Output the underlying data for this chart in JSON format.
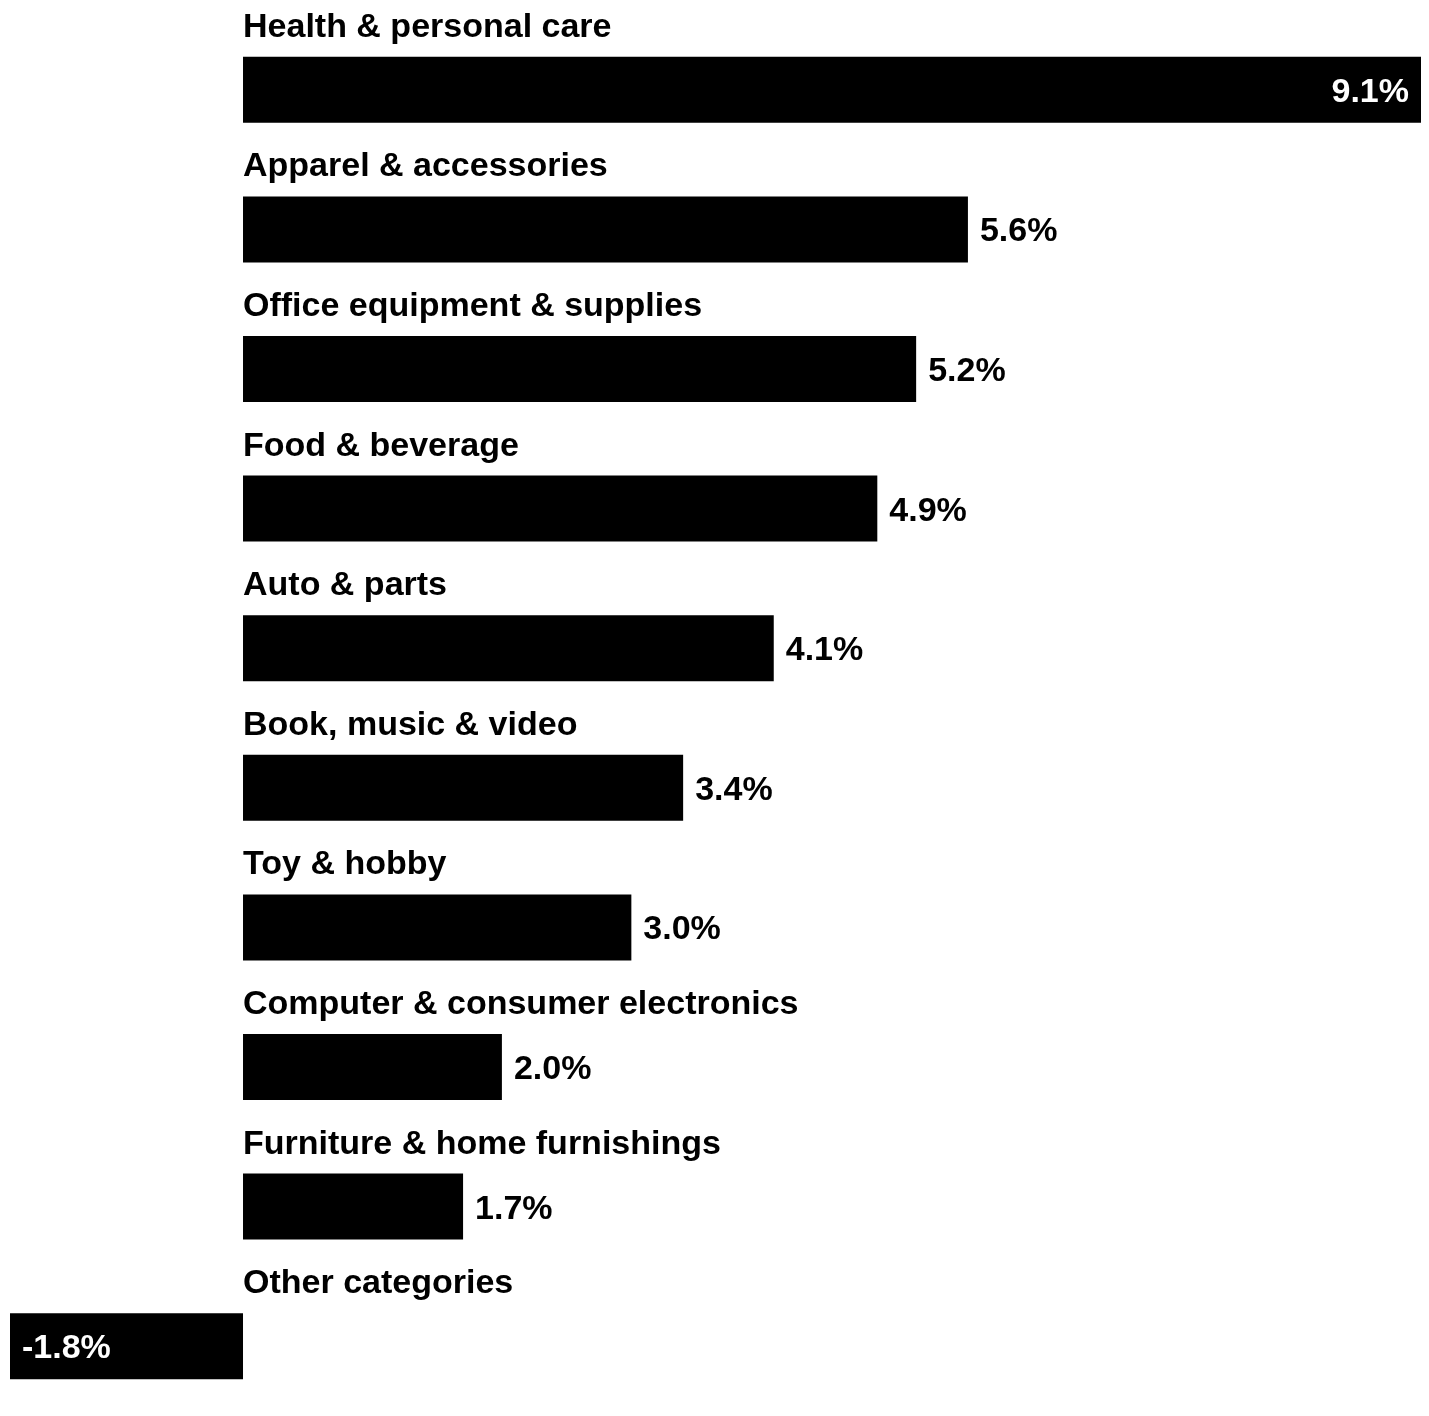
{
  "chart_data": {
    "type": "bar",
    "orientation": "horizontal",
    "categories": [
      "Health & personal care",
      "Apparel & accessories",
      "Office equipment & supplies",
      "Food & beverage",
      "Auto & parts",
      "Book, music & video",
      "Toy & hobby",
      "Computer & consumer electronics",
      "Furniture & home furnishings",
      "Other categories"
    ],
    "values": [
      9.1,
      5.6,
      5.2,
      4.9,
      4.1,
      3.4,
      3.0,
      2.0,
      1.7,
      -1.8
    ],
    "value_labels": [
      "9.1%",
      "5.6%",
      "5.2%",
      "4.9%",
      "4.1%",
      "3.4%",
      "3.0%",
      "2.0%",
      "1.7%",
      "-1.8%"
    ],
    "color": "#000000",
    "xlim": [
      -1.8,
      9.1
    ]
  }
}
